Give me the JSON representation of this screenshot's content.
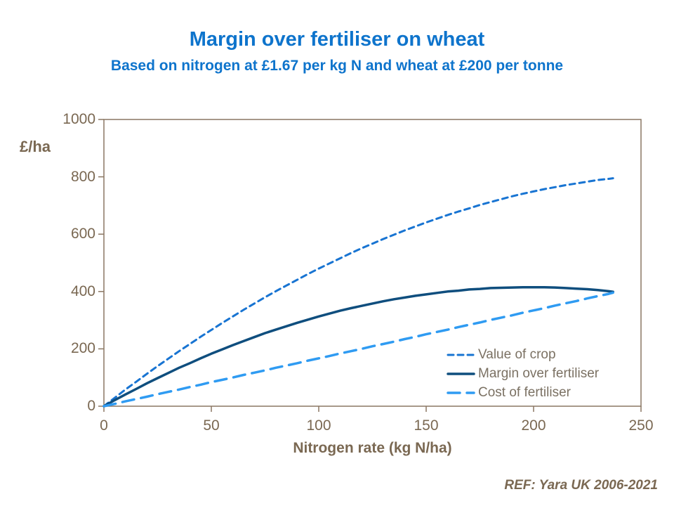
{
  "title": "Margin over fertiliser on wheat",
  "subtitle": "Based on nitrogen at £1.67 per kg N and wheat at £200 per tonne",
  "footer": {
    "ref_label": "REF: Yara UK 2006-2021"
  },
  "colors": {
    "heading_blue": "#0e74cc",
    "axis_text_brown": "#7a6852",
    "legend_text": "#7b7163",
    "plot_border": "#8a7763",
    "value_of_crop_line": "#1874d2",
    "margin_line": "#0f4e7e",
    "cost_line": "#2f9bf2"
  },
  "chart_data": {
    "type": "line",
    "title": "Margin over fertiliser on wheat",
    "subtitle": "Based on nitrogen at £1.67 per kg N and wheat at £200 per tonne",
    "xlabel": "Nitrogen rate (kg N/ha)",
    "ylabel": "£/ha",
    "xlim": [
      0,
      250
    ],
    "ylim": [
      0,
      1000
    ],
    "x_ticks": [
      0,
      50,
      100,
      150,
      200,
      250
    ],
    "y_ticks": [
      0,
      200,
      400,
      600,
      800,
      1000
    ],
    "grid": false,
    "legend_position": "inside bottom-right",
    "x": [
      0,
      5,
      10,
      15,
      20,
      25,
      30,
      35,
      40,
      45,
      50,
      55,
      60,
      65,
      70,
      75,
      80,
      85,
      90,
      95,
      100,
      105,
      110,
      115,
      120,
      125,
      130,
      135,
      140,
      145,
      150,
      155,
      160,
      165,
      170,
      175,
      180,
      185,
      190,
      195,
      200,
      205,
      210,
      215,
      220,
      225,
      230,
      235,
      237
    ],
    "series": [
      {
        "name": "Value of crop",
        "color": "#1874d2",
        "dash": "8 6",
        "width": 3,
        "values": [
          0,
          29,
          58,
          85,
          113,
          140,
          166,
          192,
          217,
          242,
          266,
          290,
          313,
          336,
          358,
          380,
          401,
          421,
          441,
          461,
          480,
          498,
          516,
          534,
          551,
          567,
          583,
          598,
          613,
          627,
          641,
          654,
          667,
          679,
          690,
          702,
          712,
          722,
          732,
          741,
          749,
          757,
          764,
          771,
          777,
          783,
          789,
          793,
          795
        ]
      },
      {
        "name": "Margin over fertiliser",
        "color": "#0f4e7e",
        "dash": "",
        "width": 3.5,
        "values": [
          0,
          21,
          41,
          60,
          80,
          98,
          116,
          134,
          150,
          167,
          183,
          198,
          213,
          227,
          241,
          255,
          267,
          279,
          291,
          302,
          313,
          323,
          333,
          342,
          350,
          358,
          366,
          373,
          379,
          385,
          390,
          395,
          400,
          403,
          407,
          409,
          412,
          413,
          414,
          415,
          415,
          415,
          414,
          412,
          410,
          408,
          405,
          401,
          399
        ]
      },
      {
        "name": "Cost of fertiliser",
        "color": "#2f9bf2",
        "dash": "17 10",
        "width": 3.5,
        "values": [
          0,
          8,
          17,
          25,
          33,
          42,
          50,
          58,
          67,
          75,
          84,
          92,
          100,
          109,
          117,
          125,
          134,
          142,
          150,
          159,
          167,
          175,
          184,
          192,
          200,
          209,
          217,
          225,
          234,
          242,
          251,
          259,
          267,
          276,
          284,
          292,
          301,
          309,
          317,
          326,
          334,
          342,
          351,
          359,
          367,
          376,
          384,
          392,
          396
        ]
      }
    ]
  }
}
